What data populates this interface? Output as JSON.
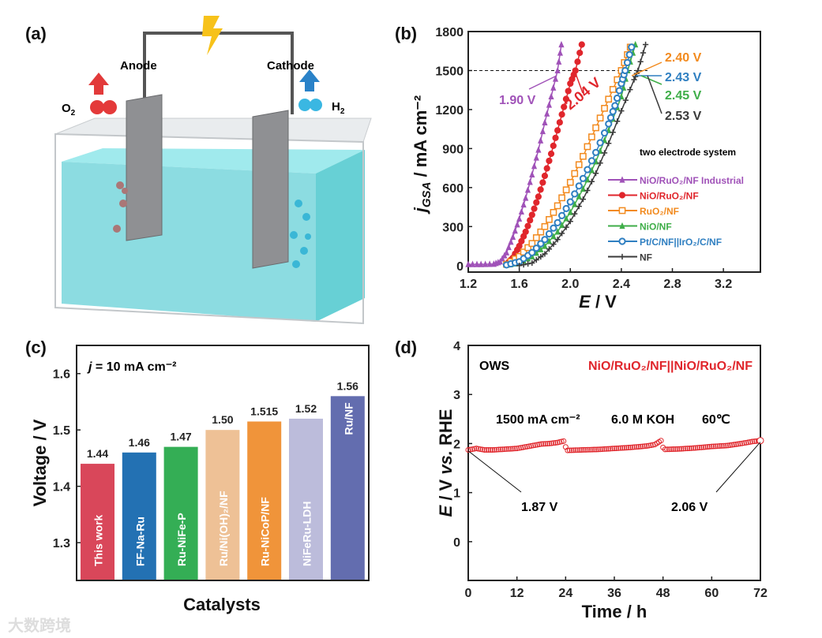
{
  "panel_a": {
    "label": "(a)",
    "anode": "Anode",
    "cathode": "Cathode",
    "o2": "O",
    "o2_sub": "2",
    "h2": "H",
    "h2_sub": "2"
  },
  "watermark": "大数跨境",
  "chart_data": [
    {
      "panel": "(b)",
      "type": "line",
      "xlabel_italic": "E",
      "xlabel_rest": " / V",
      "ylabel_italic": "j",
      "ylabel_sub": "GSA",
      "ylabel_rest": " / mA cm⁻²",
      "xlim": [
        1.2,
        3.49
      ],
      "ylim": [
        -50,
        1800
      ],
      "xticks": [
        "1.2",
        "1.6",
        "2.0",
        "2.4",
        "2.8",
        "3.2"
      ],
      "yticks": [
        "0",
        "300",
        "600",
        "900",
        "1200",
        "1500",
        "1800"
      ],
      "reference_line": 1500,
      "legend_title": "two electrode system",
      "legend_position": "lower-right",
      "series": [
        {
          "name": "NiO/RuO₂/NF Industrial",
          "color": "#a052b8",
          "marker": "triangle",
          "annotation": "1.90 V",
          "points": [
            [
              1.2,
              10
            ],
            [
              1.3,
              10
            ],
            [
              1.4,
              12
            ],
            [
              1.45,
              30
            ],
            [
              1.5,
              100
            ],
            [
              1.55,
              220
            ],
            [
              1.6,
              360
            ],
            [
              1.65,
              520
            ],
            [
              1.7,
              700
            ],
            [
              1.75,
              890
            ],
            [
              1.8,
              1100
            ],
            [
              1.85,
              1300
            ],
            [
              1.9,
              1500
            ],
            [
              1.93,
              1700
            ]
          ]
        },
        {
          "name": "NiO/RuO₂/NF",
          "color": "#e0262c",
          "marker": "circle",
          "annotation": "2.04 V",
          "points": [
            [
              1.5,
              10
            ],
            [
              1.55,
              60
            ],
            [
              1.6,
              150
            ],
            [
              1.65,
              260
            ],
            [
              1.7,
              390
            ],
            [
              1.75,
              530
            ],
            [
              1.8,
              690
            ],
            [
              1.85,
              860
            ],
            [
              1.9,
              1040
            ],
            [
              1.95,
              1220
            ],
            [
              2.0,
              1400
            ],
            [
              2.04,
              1500
            ],
            [
              2.09,
              1700
            ]
          ]
        },
        {
          "name": "RuO₂/NF",
          "color": "#f28a1e",
          "marker": "square",
          "annotation": "2.40 V",
          "points": [
            [
              1.5,
              10
            ],
            [
              1.6,
              70
            ],
            [
              1.7,
              170
            ],
            [
              1.8,
              300
            ],
            [
              1.9,
              460
            ],
            [
              2.0,
              640
            ],
            [
              2.1,
              840
            ],
            [
              2.2,
              1060
            ],
            [
              2.3,
              1280
            ],
            [
              2.4,
              1500
            ],
            [
              2.47,
              1680
            ]
          ]
        },
        {
          "name": "NiO/NF",
          "color": "#3fae49",
          "marker": "triangle",
          "annotation": "2.45 V",
          "points": [
            [
              1.5,
              5
            ],
            [
              1.6,
              20
            ],
            [
              1.7,
              70
            ],
            [
              1.8,
              150
            ],
            [
              1.9,
              260
            ],
            [
              2.0,
              410
            ],
            [
              2.1,
              590
            ],
            [
              2.2,
              800
            ],
            [
              2.3,
              1040
            ],
            [
              2.4,
              1300
            ],
            [
              2.45,
              1500
            ],
            [
              2.51,
              1700
            ]
          ]
        },
        {
          "name": "Pt/C/NF||IrO₂/C/NF",
          "color": "#2f7fc1",
          "marker": "pentagon",
          "annotation": "2.43 V",
          "points": [
            [
              1.5,
              5
            ],
            [
              1.6,
              30
            ],
            [
              1.7,
              100
            ],
            [
              1.8,
              200
            ],
            [
              1.9,
              330
            ],
            [
              2.0,
              490
            ],
            [
              2.1,
              670
            ],
            [
              2.2,
              870
            ],
            [
              2.3,
              1090
            ],
            [
              2.35,
              1230
            ],
            [
              2.4,
              1400
            ],
            [
              2.43,
              1500
            ],
            [
              2.48,
              1680
            ]
          ]
        },
        {
          "name": "NF",
          "color": "#3a3a3a",
          "marker": "star",
          "annotation": "2.53 V",
          "points": [
            [
              1.6,
              0
            ],
            [
              1.7,
              20
            ],
            [
              1.8,
              90
            ],
            [
              1.9,
              200
            ],
            [
              2.0,
              340
            ],
            [
              2.1,
              510
            ],
            [
              2.2,
              710
            ],
            [
              2.3,
              940
            ],
            [
              2.4,
              1190
            ],
            [
              2.5,
              1430
            ],
            [
              2.53,
              1500
            ],
            [
              2.59,
              1700
            ]
          ]
        }
      ]
    },
    {
      "panel": "(c)",
      "type": "bar",
      "xlabel": "Catalysts",
      "ylabel": "Voltage / V",
      "annotation_italic": "j",
      "annotation_rest": " = 10 mA cm⁻²",
      "ylim": [
        1.233,
        1.65
      ],
      "yticks": [
        "1.3",
        "1.4",
        "1.5",
        "1.6"
      ],
      "categories": [
        "This work",
        "FF-Na-Ru",
        "Ru-NiFe-P",
        "Ru/Ni(OH)₂/NF",
        "Ru-NiCoP/NF",
        "NiFeRu-LDH",
        "Ru/NF"
      ],
      "values": [
        1.44,
        1.46,
        1.47,
        1.5,
        1.515,
        1.52,
        1.56
      ],
      "value_labels": [
        "1.44",
        "1.46",
        "1.47",
        "1.50",
        "1.515",
        "1.52",
        "1.56"
      ],
      "colors": [
        "#d9475a",
        "#2371b3",
        "#34ae55",
        "#eec196",
        "#f0943a",
        "#bcbcdb",
        "#636daf"
      ]
    },
    {
      "panel": "(d)",
      "type": "scatter",
      "xlabel": "Time / h",
      "ylabel_italic": "E",
      "ylabel_mid": " / V ",
      "ylabel_vs": "vs.",
      "ylabel_rest": " RHE",
      "xlim": [
        0,
        72
      ],
      "ylim": [
        -0.79,
        4
      ],
      "xticks": [
        "0",
        "12",
        "24",
        "36",
        "48",
        "60",
        "72"
      ],
      "yticks": [
        "0",
        "1",
        "2",
        "3",
        "4"
      ],
      "label_left": "OWS",
      "label_right": "NiO/RuO₂/NF||NiO/RuO₂/NF",
      "conditions": [
        "1500 mA cm⁻²",
        "6.0 M KOH",
        "60℃"
      ],
      "color": "#e0262c",
      "annotations": [
        {
          "text": "1.87 V",
          "x": 0,
          "y": 1.87
        },
        {
          "text": "2.06 V",
          "x": 72,
          "y": 2.06
        }
      ],
      "points": [
        [
          0,
          1.87
        ],
        [
          2,
          1.9
        ],
        [
          4,
          1.87
        ],
        [
          6,
          1.87
        ],
        [
          8,
          1.88
        ],
        [
          10,
          1.89
        ],
        [
          12,
          1.9
        ],
        [
          14,
          1.93
        ],
        [
          16,
          1.96
        ],
        [
          18,
          1.99
        ],
        [
          20,
          2.0
        ],
        [
          22,
          2.02
        ],
        [
          23.5,
          2.05
        ],
        [
          24,
          1.93
        ],
        [
          24.5,
          1.86
        ],
        [
          28,
          1.87
        ],
        [
          32,
          1.88
        ],
        [
          36,
          1.9
        ],
        [
          40,
          1.92
        ],
        [
          44,
          1.95
        ],
        [
          46,
          1.98
        ],
        [
          47.5,
          2.06
        ],
        [
          48,
          1.92
        ],
        [
          48.5,
          1.88
        ],
        [
          52,
          1.89
        ],
        [
          56,
          1.91
        ],
        [
          60,
          1.94
        ],
        [
          64,
          1.96
        ],
        [
          68,
          2.01
        ],
        [
          70,
          2.04
        ],
        [
          72,
          2.06
        ]
      ]
    }
  ]
}
